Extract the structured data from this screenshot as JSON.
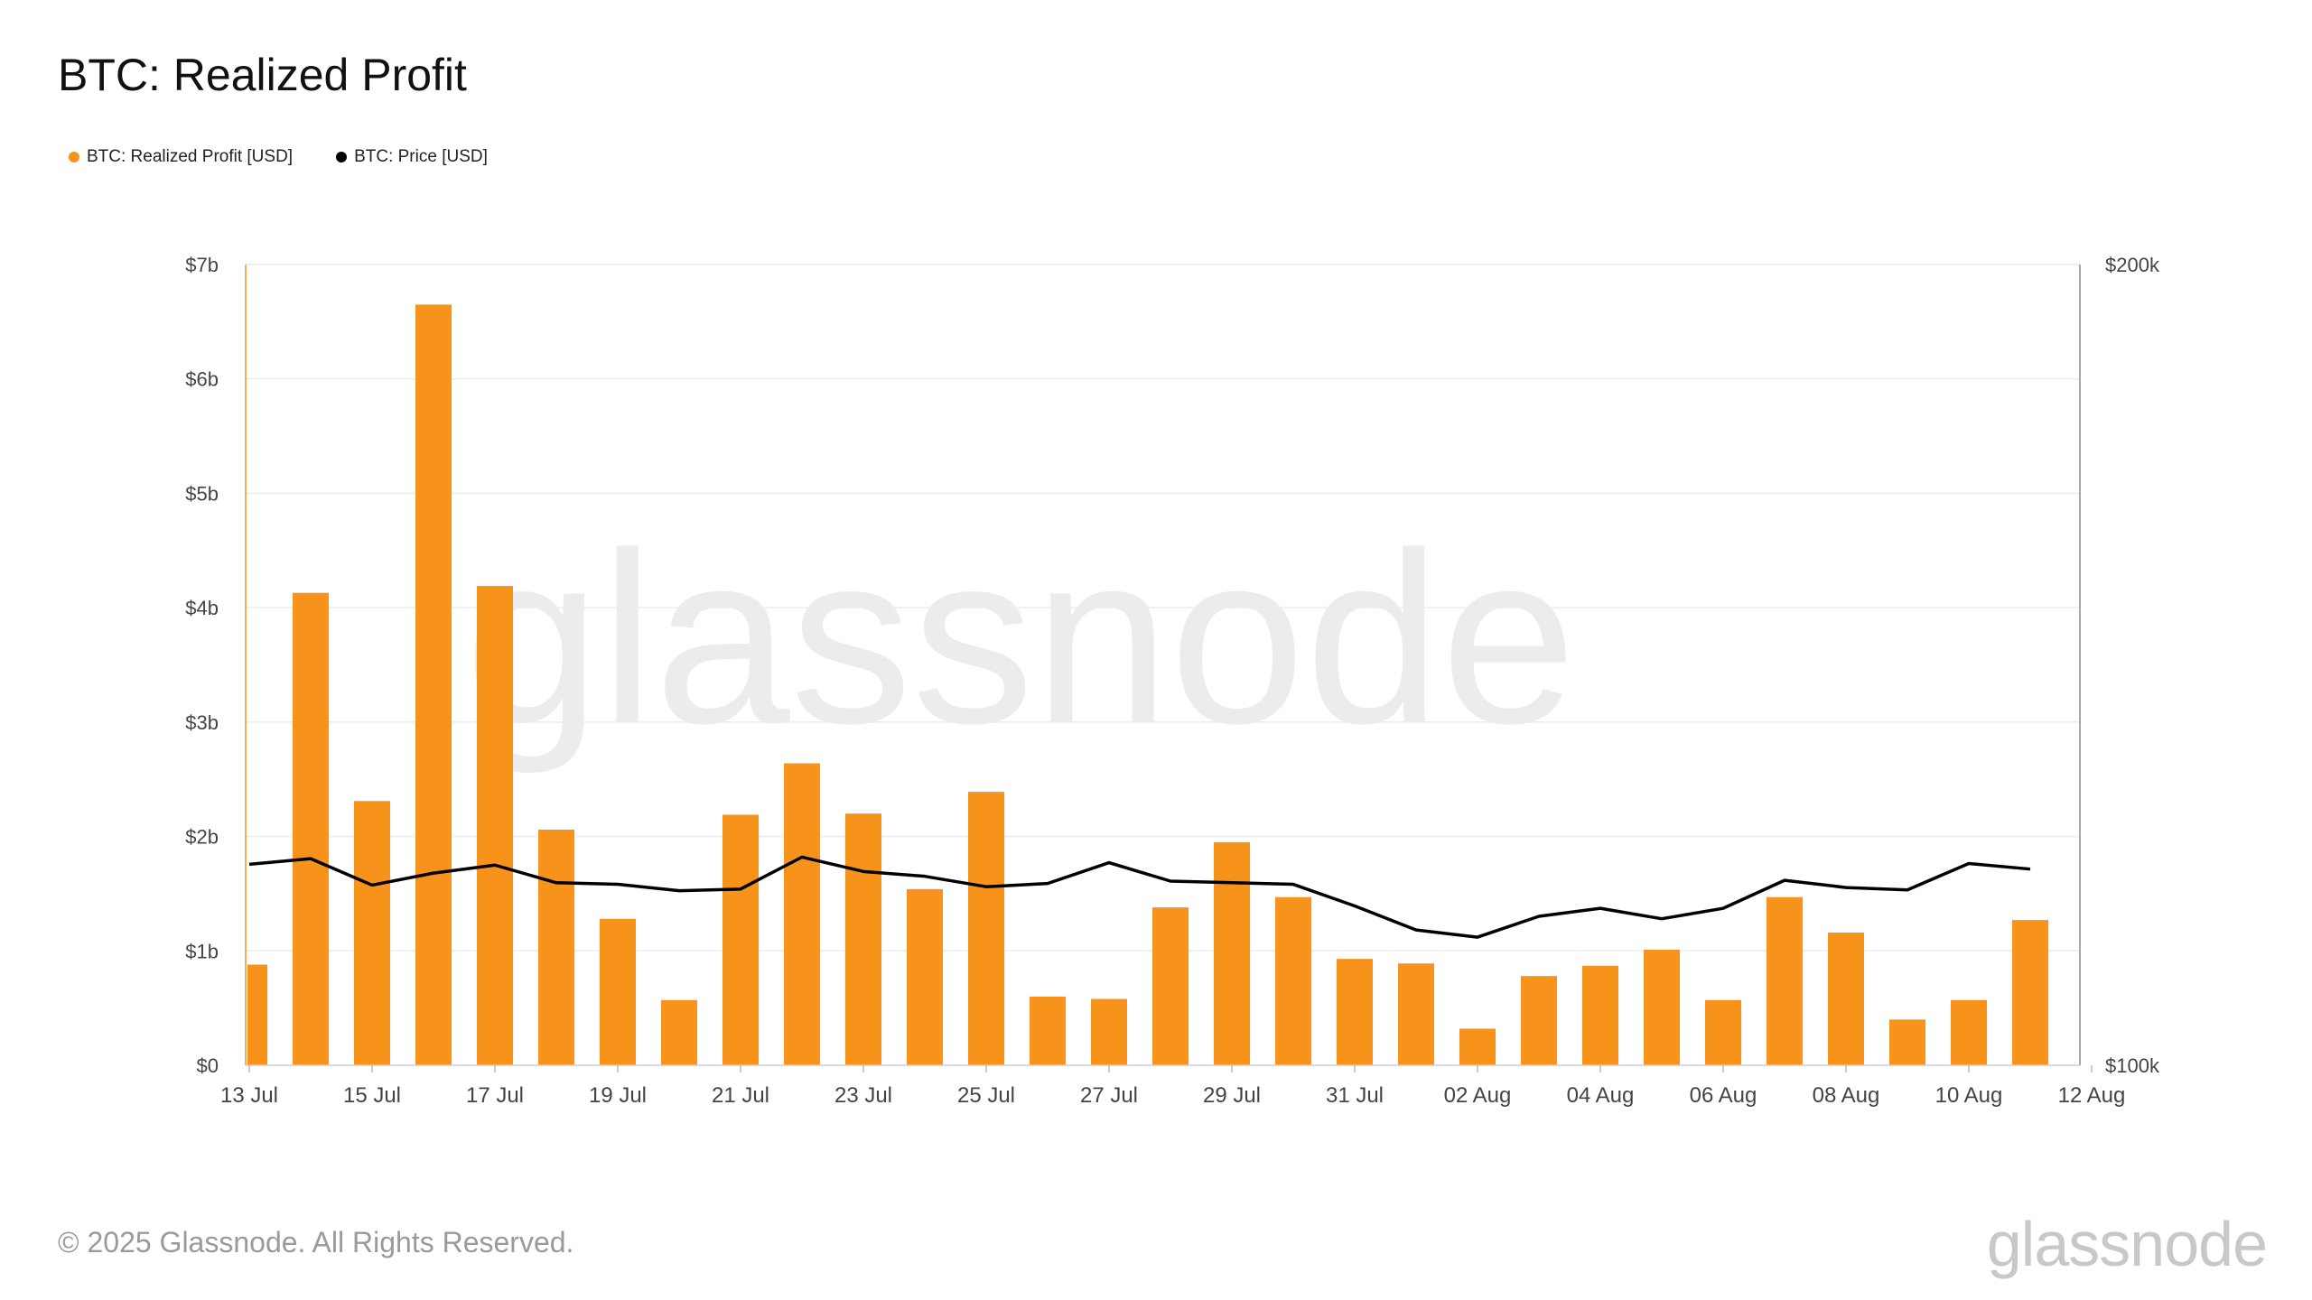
{
  "title": "BTC: Realized Profit",
  "legend": [
    {
      "label": "BTC: Realized Profit [USD]",
      "color": "#f7931a"
    },
    {
      "label": "BTC: Price [USD]",
      "color": "#000000"
    }
  ],
  "watermark": "glassnode",
  "footer": {
    "copyright": "© 2025 Glassnode. All Rights Reserved.",
    "logo": "glassnode"
  },
  "chart_data": {
    "type": "bar",
    "x_tick_labels": [
      "13 Jul",
      "15 Jul",
      "17 Jul",
      "19 Jul",
      "21 Jul",
      "23 Jul",
      "25 Jul",
      "27 Jul",
      "29 Jul",
      "31 Jul",
      "02 Aug",
      "04 Aug",
      "06 Aug",
      "08 Aug",
      "10 Aug",
      "12 Aug"
    ],
    "categories": [
      "13 Jul",
      "14 Jul",
      "15 Jul",
      "16 Jul",
      "17 Jul",
      "18 Jul",
      "19 Jul",
      "20 Jul",
      "21 Jul",
      "22 Jul",
      "23 Jul",
      "24 Jul",
      "25 Jul",
      "26 Jul",
      "27 Jul",
      "28 Jul",
      "29 Jul",
      "30 Jul",
      "31 Jul",
      "01 Aug",
      "02 Aug",
      "03 Aug",
      "04 Aug",
      "05 Aug",
      "06 Aug",
      "07 Aug",
      "08 Aug",
      "09 Aug",
      "10 Aug",
      "11 Aug"
    ],
    "y_left": {
      "ticks": [
        "$0",
        "$1b",
        "$2b",
        "$3b",
        "$4b",
        "$5b",
        "$6b",
        "$7b"
      ],
      "range": [
        0,
        7
      ],
      "unit": "billion USD"
    },
    "y_right": {
      "ticks": [
        "$100k",
        "$200k"
      ],
      "range": [
        100000,
        200000
      ]
    },
    "series": [
      {
        "name": "BTC: Realized Profit [USD]",
        "type": "bar",
        "axis": "left",
        "color": "#f7931a",
        "values": [
          0.88,
          4.13,
          2.31,
          6.65,
          4.19,
          2.06,
          1.28,
          0.57,
          2.19,
          2.64,
          2.2,
          1.54,
          2.39,
          0.6,
          0.58,
          1.38,
          1.95,
          1.47,
          0.93,
          0.89,
          0.32,
          0.78,
          0.87,
          1.01,
          0.57,
          1.47,
          1.16,
          0.4,
          0.57,
          1.27
        ]
      },
      {
        "name": "BTC: Price [USD]",
        "type": "line",
        "axis": "right",
        "color": "#000000",
        "values": [
          125100,
          125800,
          122500,
          124000,
          125000,
          122800,
          122600,
          121800,
          122000,
          126000,
          124200,
          123600,
          122300,
          122700,
          125300,
          123000,
          122800,
          122600,
          119900,
          116900,
          116000,
          118600,
          119600,
          118300,
          119600,
          123100,
          122200,
          121900,
          125200,
          124500
        ]
      }
    ]
  }
}
